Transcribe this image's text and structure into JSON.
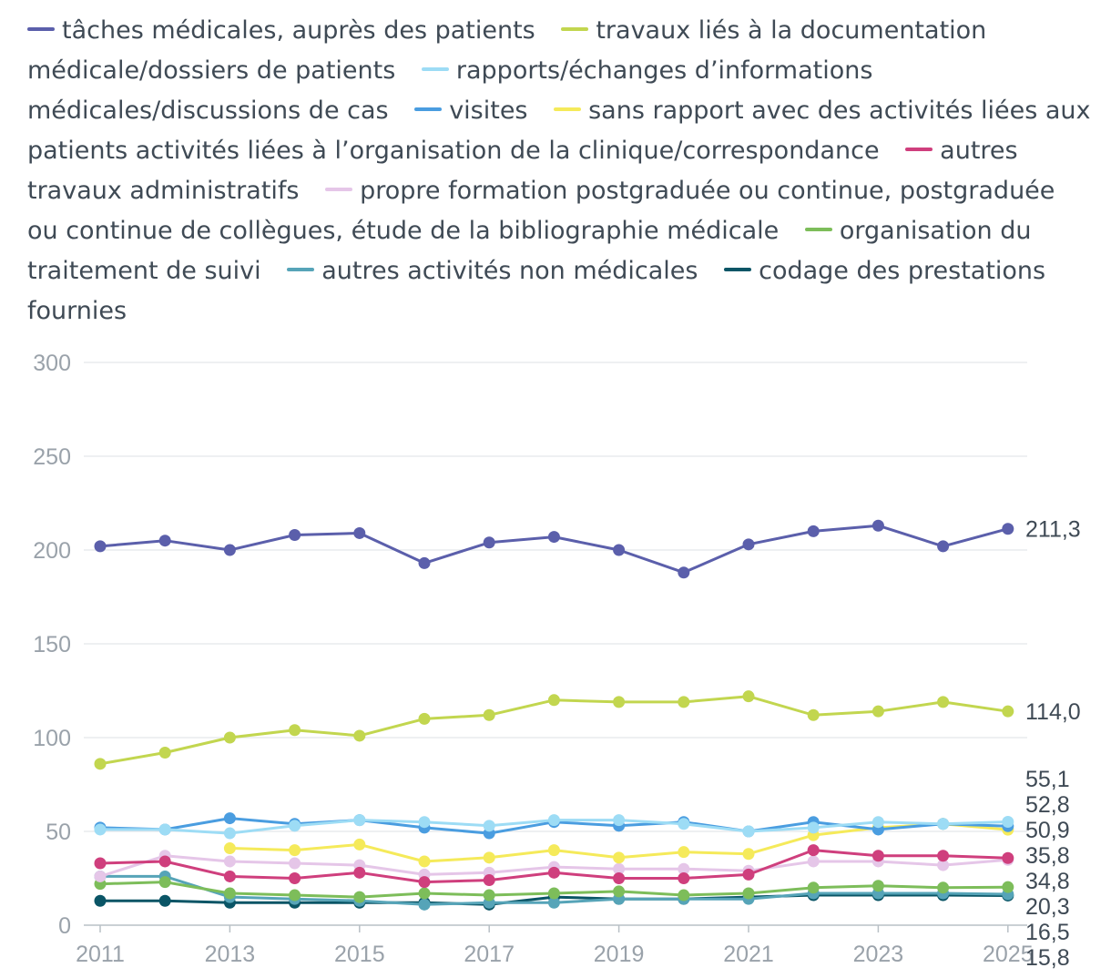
{
  "chart_data": {
    "type": "line",
    "x": [
      "2011",
      "2012",
      "2013",
      "2014",
      "2015",
      "2016",
      "2017",
      "2018",
      "2019",
      "2020",
      "2021",
      "2022",
      "2023",
      "2024",
      "2025"
    ],
    "xticks": [
      "2011",
      "2013",
      "2015",
      "2017",
      "2019",
      "2021",
      "2023",
      "2025"
    ],
    "yticks": [
      "0",
      "50",
      "100",
      "150",
      "200",
      "250",
      "300"
    ],
    "ylim": [
      0,
      300
    ],
    "grid": true,
    "legend_position": "top",
    "series": [
      {
        "name": "tâches médicales, auprès des patients",
        "color": "#5b5fab",
        "values": [
          202,
          205,
          200,
          208,
          209,
          193,
          204,
          207,
          200,
          188,
          203,
          210,
          213,
          202,
          211.3
        ],
        "end_label": "211,3"
      },
      {
        "name": "travaux liés à la documentation médicale/dossiers de patients",
        "color": "#c2d64f",
        "values": [
          86,
          92,
          100,
          104,
          101,
          110,
          112,
          120,
          119,
          119,
          122,
          112,
          114,
          119,
          114.0
        ],
        "end_label": "114,0"
      },
      {
        "name": "rapports/échanges d’informations médicales/discussions de cas",
        "color": "#9ddcf5",
        "values": [
          51,
          51,
          49,
          53,
          56,
          55,
          53,
          56,
          56,
          54,
          50,
          52,
          55,
          54,
          55.1
        ],
        "end_label": "55,1"
      },
      {
        "name": "visites",
        "color": "#4a9de0",
        "values": [
          52,
          51,
          57,
          54,
          56,
          52,
          49,
          55,
          53,
          55,
          50,
          55,
          51,
          54,
          52.8
        ],
        "end_label": "52,8"
      },
      {
        "name": "sans rapport avec des activités liées aux patients activités liées à l’organisation de la clinique/correspondance",
        "color": "#f5ea5a",
        "values": [
          null,
          null,
          41,
          40,
          43,
          34,
          36,
          40,
          36,
          39,
          38,
          48,
          52,
          54,
          50.9
        ],
        "end_label": "50,9"
      },
      {
        "name": "autres travaux administratifs",
        "color": "#cf3f7d",
        "values": [
          33,
          34,
          26,
          25,
          28,
          23,
          24,
          28,
          25,
          25,
          27,
          40,
          37,
          37,
          35.8
        ],
        "end_label": "35,8"
      },
      {
        "name": "propre formation postgraduée ou continue, postgraduée ou continue de collègues, étude de la bibliographie médicale",
        "color": "#e5c6e8",
        "values": [
          26,
          37,
          34,
          33,
          32,
          27,
          28,
          31,
          30,
          30,
          29,
          34,
          34,
          32,
          34.8
        ],
        "end_label": "34,8"
      },
      {
        "name": "organisation du traitement de suivi",
        "color": "#7dbd5a",
        "values": [
          22,
          23,
          17,
          16,
          15,
          17,
          16,
          17,
          18,
          16,
          17,
          20,
          21,
          20,
          20.3
        ],
        "end_label": "20,3"
      },
      {
        "name": "autres activités non médicales",
        "color": "#56a4b8",
        "values": [
          26,
          26,
          15,
          14,
          13,
          11,
          12,
          12,
          14,
          14,
          14,
          17,
          17,
          17,
          16.5
        ],
        "end_label": "16,5"
      },
      {
        "name": "codage des prestations fournies",
        "color": "#0a5566",
        "values": [
          13,
          13,
          12,
          12,
          12,
          12,
          11,
          15,
          14,
          14,
          15,
          16,
          16,
          16,
          15.8
        ],
        "end_label": "15,8"
      }
    ]
  }
}
